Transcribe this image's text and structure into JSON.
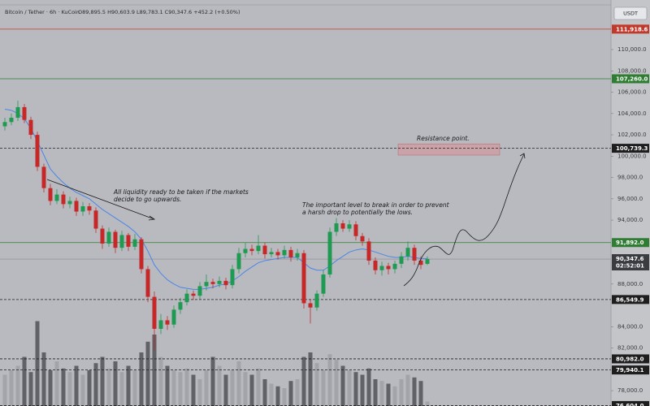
{
  "chart_data": {
    "type": "candlestick",
    "title": "Bitcoin / Tether · 6h · KuCoin",
    "subtitle": "O89,895.5 H90,603.9 L89,783.1 C90,347.6 +452.2 (+0.50%)",
    "currency": "USDT",
    "up_color": "#1f9a52",
    "down_color": "#c62828",
    "ma_color": "#4a86e8",
    "volume_up_color": "#a3a4a9",
    "volume_down_color": "#616268",
    "ylim": [
      76560,
      114650
    ],
    "volume_ylim": [
      0,
      100
    ],
    "yticks": [
      {
        "value": 110000,
        "label": "110,000.0"
      },
      {
        "value": 108000,
        "label": "108,000.0"
      },
      {
        "value": 106000,
        "label": "106,000.0"
      },
      {
        "value": 104000,
        "label": "104,000.0"
      },
      {
        "value": 102000,
        "label": "102,000.0"
      },
      {
        "value": 100000,
        "label": "100,000.0"
      },
      {
        "value": 98000,
        "label": "98,000.0"
      },
      {
        "value": 96000,
        "label": "96,000.0"
      },
      {
        "value": 94000,
        "label": "94,000.0"
      },
      {
        "value": 88000,
        "label": "88,000.0"
      },
      {
        "value": 84000,
        "label": "84,000.0"
      },
      {
        "value": 82000,
        "label": "82,000.0"
      },
      {
        "value": 78000,
        "label": "78,000.0"
      }
    ],
    "open": [
      102800,
      103200,
      103600,
      104600,
      103400,
      102000,
      99000,
      97000,
      95800,
      96400,
      95500,
      95800,
      94800,
      95300,
      94900,
      93200,
      91800,
      92900,
      91400,
      92600,
      91500,
      92200,
      89400,
      86800,
      83800,
      84600,
      84200,
      85600,
      86300,
      87100,
      86900,
      87800,
      88200,
      88000,
      88300,
      87900,
      89400,
      90900,
      91300,
      91100,
      91600,
      90800,
      91000,
      90700,
      91200,
      90500,
      90900,
      86200,
      85800,
      87100,
      88900,
      92900,
      93700,
      93200,
      93600,
      92500,
      92000,
      90200,
      89300,
      89700,
      89400,
      89900,
      90600,
      91400,
      90200,
      89895.5
    ],
    "high": [
      103600,
      104000,
      105200,
      104900,
      103700,
      102300,
      99300,
      97400,
      96900,
      96700,
      96200,
      96100,
      95700,
      95600,
      95200,
      93500,
      93300,
      93100,
      93000,
      92800,
      92700,
      92400,
      89700,
      87300,
      85200,
      85000,
      86000,
      86700,
      87500,
      87400,
      88200,
      88900,
      88500,
      88700,
      88600,
      89800,
      91400,
      91900,
      91700,
      92600,
      91900,
      91400,
      91300,
      91600,
      91500,
      91300,
      91200,
      86600,
      87400,
      89300,
      93300,
      94200,
      94000,
      94000,
      93900,
      92800,
      92300,
      90500,
      90100,
      90000,
      90200,
      91000,
      92000,
      91700,
      90600,
      90603.9
    ],
    "low": [
      102400,
      102900,
      103300,
      103100,
      101600,
      98600,
      96600,
      95400,
      95500,
      95100,
      95100,
      94400,
      94400,
      94500,
      92800,
      91300,
      91500,
      90900,
      91100,
      91100,
      91200,
      89000,
      86300,
      81800,
      83300,
      83700,
      83900,
      85200,
      86000,
      86500,
      86600,
      87400,
      87600,
      87700,
      87500,
      87600,
      89000,
      90500,
      90700,
      90800,
      90400,
      90500,
      90300,
      90400,
      90100,
      90200,
      85700,
      84300,
      85500,
      86800,
      88600,
      92500,
      92900,
      92900,
      92100,
      91600,
      89800,
      88900,
      88800,
      88900,
      89000,
      89500,
      90200,
      89800,
      89400,
      89783.1
    ],
    "close": [
      103200,
      103600,
      104600,
      103400,
      102000,
      99000,
      97000,
      95800,
      96400,
      95500,
      95800,
      94800,
      95300,
      94900,
      93200,
      91800,
      92900,
      91400,
      92600,
      91500,
      92200,
      89400,
      86800,
      83800,
      84600,
      84200,
      85600,
      86300,
      87100,
      86900,
      87800,
      88200,
      88000,
      88300,
      87900,
      89400,
      90900,
      91300,
      91100,
      91600,
      90800,
      91000,
      90700,
      91200,
      90500,
      90900,
      86200,
      85800,
      87100,
      88900,
      92900,
      93700,
      93200,
      93600,
      92500,
      92000,
      90200,
      89300,
      89700,
      89400,
      89900,
      90600,
      91400,
      90200,
      89800,
      90347.6
    ],
    "volume": [
      35,
      40,
      45,
      55,
      38,
      95,
      60,
      40,
      50,
      42,
      38,
      45,
      35,
      40,
      48,
      55,
      42,
      50,
      38,
      45,
      40,
      60,
      72,
      80,
      55,
      45,
      40,
      38,
      42,
      35,
      30,
      40,
      55,
      45,
      35,
      40,
      50,
      38,
      35,
      42,
      30,
      25,
      22,
      20,
      28,
      30,
      55,
      60,
      48,
      40,
      58,
      52,
      45,
      40,
      38,
      35,
      42,
      30,
      28,
      25,
      22,
      30,
      35,
      32,
      28,
      5
    ],
    "ma": [
      104400,
      104300,
      104000,
      103500,
      102600,
      101400,
      100100,
      98800,
      98100,
      97500,
      97000,
      96600,
      96300,
      96000,
      95500,
      95000,
      94600,
      94200,
      93800,
      93400,
      92900,
      92200,
      91100,
      89800,
      89000,
      88400,
      88000,
      87700,
      87600,
      87500,
      87500,
      87600,
      87700,
      87900,
      88000,
      88300,
      88700,
      89200,
      89600,
      90000,
      90200,
      90300,
      90400,
      90500,
      90500,
      90500,
      90000,
      89500,
      89300,
      89300,
      89700,
      90200,
      90600,
      91000,
      91200,
      91300,
      91200,
      91000,
      90800,
      90600,
      90500,
      90500,
      90600,
      90500,
      90400,
      90400
    ],
    "levels": [
      {
        "value": 111918.6,
        "label": "111,918.6",
        "color": "#c0392b",
        "style": "solid"
      },
      {
        "value": 107260,
        "label": "107,260.0",
        "color": "#2e7d32",
        "style": "solid"
      },
      {
        "value": 100739.3,
        "label": "100,739.3",
        "color": "#1e1e1e",
        "style": "dashed"
      },
      {
        "value": 91892,
        "label": "91,892.0",
        "color": "#2e7d32",
        "style": "solid"
      },
      {
        "value": 86549.9,
        "label": "86,549.9",
        "color": "#1e1e1e",
        "style": "dashed"
      },
      {
        "value": 80982,
        "label": "80,982.0",
        "color": "#1e1e1e",
        "style": "dashed"
      },
      {
        "value": 79940.1,
        "label": "79,940.1",
        "color": "#1e1e1e",
        "style": "dashed"
      },
      {
        "value": 76604,
        "label": "76,604.0",
        "color": "#1e1e1e",
        "style": "dashed"
      }
    ],
    "current_price": {
      "value": 90347.6,
      "label": "90,347.6",
      "countdown": "02:52:01"
    },
    "resistance_zone": {
      "low": 100100,
      "high": 101150,
      "label": "Resistance point."
    },
    "annotations": [
      [
        "All liquidity ready to be taken if the markets",
        "decide to go upwards."
      ],
      [
        "The important level to break in order to prevent",
        "a harsh drop to potentially the lows."
      ]
    ]
  }
}
